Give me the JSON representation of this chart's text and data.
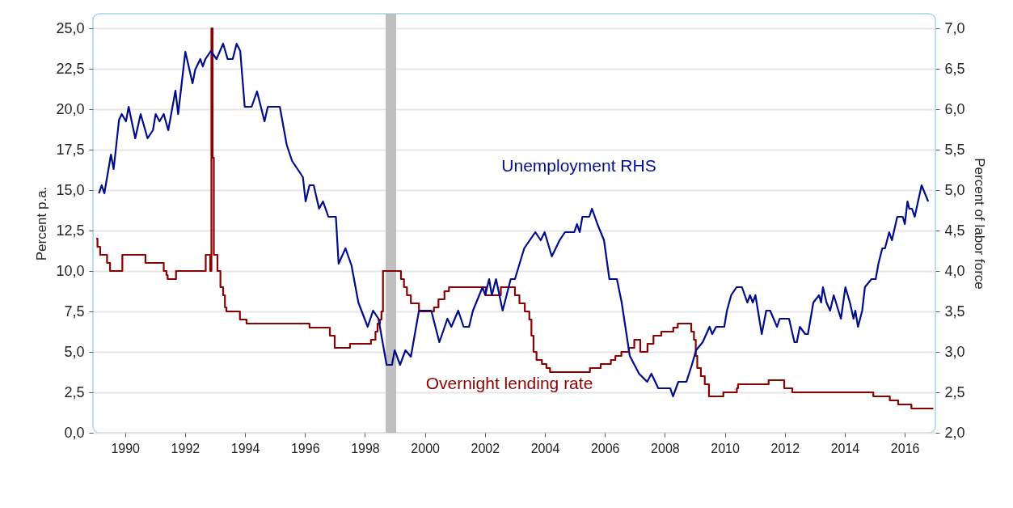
{
  "chart_data": {
    "type": "line",
    "ylabel": "Percent p.a.",
    "y2label": "Percent of labor force",
    "xlim": [
      1988.93,
      2017.02
    ],
    "xticks": [
      1990,
      1992,
      1994,
      1996,
      1998,
      2000,
      2002,
      2004,
      2006,
      2008,
      2010,
      2012,
      2014,
      2016
    ],
    "ylim": [
      0,
      25.9
    ],
    "yticks": [
      {
        "value": 0,
        "label": "0,0"
      },
      {
        "value": 2.5,
        "label": "2,5"
      },
      {
        "value": 5,
        "label": "5,0"
      },
      {
        "value": 7.5,
        "label": "7,5"
      },
      {
        "value": 10,
        "label": "10,0"
      },
      {
        "value": 12.5,
        "label": "12,5"
      },
      {
        "value": 15,
        "label": "15,0"
      },
      {
        "value": 17.5,
        "label": "17,5"
      },
      {
        "value": 20,
        "label": "20,0"
      },
      {
        "value": 22.5,
        "label": "22,5"
      },
      {
        "value": 25,
        "label": "25,0"
      }
    ],
    "y2lim": [
      2,
      7.18
    ],
    "y2ticks": [
      {
        "value": 2,
        "label": "2,0"
      },
      {
        "value": 2.5,
        "label": "2,5"
      },
      {
        "value": 3,
        "label": "3,0"
      },
      {
        "value": 3.5,
        "label": "3,5"
      },
      {
        "value": 4,
        "label": "4,0"
      },
      {
        "value": 4.5,
        "label": "4,5"
      },
      {
        "value": 5,
        "label": "5,0"
      },
      {
        "value": 5.5,
        "label": "5,5"
      },
      {
        "value": 6,
        "label": "6,0"
      },
      {
        "value": 6.5,
        "label": "6,5"
      },
      {
        "value": 7,
        "label": "7,0"
      }
    ],
    "grid": "y",
    "bands": [
      {
        "axis": "x",
        "from": 1998.69,
        "to": 1999.04,
        "color": "#bfbfbf"
      }
    ],
    "series": [
      {
        "name": "Overnight lending rate",
        "type": "step",
        "color": "#8b0000",
        "x": [
          1989.04,
          1989.08,
          1989.17,
          1989.4,
          1989.5,
          1989.91,
          1990.68,
          1991.29,
          1991.38,
          1991.42,
          1991.7,
          1992.69,
          1992.84,
          1992.88,
          1992.92,
          1992.96,
          1993.08,
          1993.18,
          1993.27,
          1993.33,
          1993.38,
          1993.83,
          1994.05,
          1996.15,
          1996.83,
          1996.99,
          1997.5,
          1998.2,
          1998.35,
          1998.42,
          1998.5,
          1998.55,
          1998.6,
          1999.2,
          1999.3,
          1999.4,
          1999.53,
          1999.8,
          2000.3,
          2000.45,
          2000.65,
          2000.8,
          2002.03,
          2002.53,
          2003.0,
          2003.15,
          2003.33,
          2003.48,
          2003.55,
          2003.62,
          2003.72,
          2003.9,
          2004.05,
          2004.17,
          2005.5,
          2005.86,
          2006.2,
          2006.35,
          2006.55,
          2006.8,
          2006.98,
          2007.18,
          2007.42,
          2007.62,
          2007.88,
          2008.28,
          2008.43,
          2008.88,
          2008.97,
          2009.03,
          2009.08,
          2009.2,
          2009.33,
          2009.47,
          2009.95,
          2010.4,
          2010.44,
          2011.46,
          2011.98,
          2012.25,
          2014.95,
          2015.5,
          2015.78,
          2016.22,
          2016.95
        ],
        "values": [
          12.0,
          11.5,
          11.0,
          10.5,
          10.0,
          11.0,
          10.5,
          10.0,
          9.75,
          9.5,
          10.0,
          11.0,
          10.0,
          25.0,
          17.0,
          11.0,
          10.0,
          9.0,
          8.5,
          7.75,
          7.5,
          7.0,
          6.75,
          6.5,
          6.0,
          5.25,
          5.5,
          5.75,
          6.25,
          6.75,
          7.0,
          7.5,
          10.0,
          9.5,
          9.0,
          8.5,
          8.0,
          7.5,
          7.75,
          8.25,
          8.75,
          9.0,
          8.5,
          9.0,
          8.5,
          8.0,
          7.5,
          7.0,
          6.0,
          5.0,
          4.5,
          4.25,
          4.0,
          3.75,
          4.0,
          4.25,
          4.5,
          4.75,
          5.0,
          5.25,
          5.75,
          5.0,
          5.5,
          6.0,
          6.25,
          6.5,
          6.75,
          6.25,
          5.75,
          4.75,
          4.0,
          3.5,
          3.0,
          2.25,
          2.5,
          2.75,
          3.0,
          3.25,
          2.75,
          2.5,
          2.25,
          2.0,
          1.75,
          1.5,
          1.5
        ]
      },
      {
        "name": "Unemployment RHS",
        "type": "line",
        "axis": "y2",
        "color": "#000c8c",
        "x": [
          1989.13,
          1989.22,
          1989.31,
          1989.53,
          1989.62,
          1989.8,
          1989.89,
          1990.03,
          1990.12,
          1990.34,
          1990.52,
          1990.75,
          1990.93,
          1991.02,
          1991.15,
          1991.29,
          1991.44,
          1991.68,
          1991.77,
          1992.01,
          1992.25,
          1992.34,
          1992.51,
          1992.59,
          1992.68,
          1992.86,
          1993.05,
          1993.27,
          1993.42,
          1993.59,
          1993.72,
          1993.84,
          1993.99,
          1994.22,
          1994.4,
          1994.65,
          1994.76,
          1995.16,
          1995.39,
          1995.57,
          1995.75,
          1995.93,
          1996.02,
          1996.15,
          1996.29,
          1996.47,
          1996.6,
          1996.78,
          1997.03,
          1997.12,
          1997.35,
          1997.55,
          1997.78,
          1998.09,
          1998.27,
          1998.45,
          1998.72,
          1998.9,
          1998.99,
          1999.17,
          1999.35,
          1999.53,
          1999.8,
          2000.21,
          2000.48,
          2000.75,
          2000.88,
          2001.11,
          2001.29,
          2001.47,
          2001.6,
          2001.92,
          2002.01,
          2002.14,
          2002.23,
          2002.37,
          2002.59,
          2002.86,
          2003.0,
          2003.31,
          2003.68,
          2003.86,
          2003.99,
          2004.23,
          2004.49,
          2004.67,
          2004.98,
          2005.07,
          2005.16,
          2005.25,
          2005.48,
          2005.57,
          2005.75,
          2005.97,
          2006.15,
          2006.4,
          2006.56,
          2006.83,
          2007.14,
          2007.41,
          2007.55,
          2007.78,
          2008.18,
          2008.27,
          2008.45,
          2008.72,
          2008.9,
          2009.04,
          2009.26,
          2009.49,
          2009.58,
          2009.71,
          2009.98,
          2010.07,
          2010.21,
          2010.39,
          2010.57,
          2010.75,
          2010.84,
          2010.93,
          2011.02,
          2011.23,
          2011.38,
          2011.51,
          2011.74,
          2011.83,
          2012.14,
          2012.32,
          2012.4,
          2012.5,
          2012.68,
          2012.77,
          2012.95,
          2013.14,
          2013.21,
          2013.27,
          2013.39,
          2013.51,
          2013.63,
          2013.87,
          2014.02,
          2014.17,
          2014.29,
          2014.35,
          2014.44,
          2014.58,
          2014.67,
          2014.89,
          2015.03,
          2015.12,
          2015.25,
          2015.34,
          2015.48,
          2015.57,
          2015.75,
          2015.93,
          2016.0,
          2016.09,
          2016.15,
          2016.24,
          2016.33,
          2016.56,
          2016.78
        ],
        "values": [
          4.96,
          5.06,
          4.96,
          5.44,
          5.26,
          5.87,
          5.94,
          5.85,
          6.03,
          5.64,
          5.94,
          5.64,
          5.74,
          5.94,
          5.85,
          5.94,
          5.74,
          6.23,
          5.94,
          6.71,
          6.32,
          6.49,
          6.62,
          6.53,
          6.62,
          6.72,
          6.62,
          6.81,
          6.62,
          6.62,
          6.81,
          6.72,
          6.03,
          6.03,
          6.22,
          5.85,
          6.03,
          6.03,
          5.56,
          5.36,
          5.26,
          5.16,
          4.86,
          5.06,
          5.06,
          4.77,
          4.86,
          4.67,
          4.67,
          4.09,
          4.28,
          4.07,
          3.61,
          3.31,
          3.51,
          3.41,
          2.84,
          2.84,
          3.02,
          2.84,
          3.02,
          2.94,
          3.51,
          3.51,
          3.12,
          3.41,
          3.31,
          3.51,
          3.31,
          3.31,
          3.51,
          3.8,
          3.7,
          3.9,
          3.7,
          3.9,
          3.51,
          3.9,
          3.9,
          4.28,
          4.48,
          4.38,
          4.48,
          4.18,
          4.38,
          4.48,
          4.48,
          4.58,
          4.48,
          4.67,
          4.67,
          4.77,
          4.58,
          4.38,
          3.9,
          3.9,
          3.61,
          2.95,
          2.73,
          2.63,
          2.73,
          2.55,
          2.55,
          2.45,
          2.63,
          2.63,
          2.84,
          3.02,
          3.12,
          3.31,
          3.22,
          3.31,
          3.31,
          3.51,
          3.7,
          3.8,
          3.8,
          3.61,
          3.7,
          3.61,
          3.7,
          3.22,
          3.51,
          3.51,
          3.31,
          3.41,
          3.41,
          3.12,
          3.12,
          3.31,
          3.22,
          3.22,
          3.61,
          3.7,
          3.61,
          3.8,
          3.61,
          3.51,
          3.7,
          3.41,
          3.8,
          3.61,
          3.41,
          3.51,
          3.31,
          3.51,
          3.8,
          3.9,
          3.9,
          4.09,
          4.28,
          4.28,
          4.48,
          4.38,
          4.67,
          4.67,
          4.58,
          4.86,
          4.77,
          4.77,
          4.67,
          5.06,
          4.86
        ]
      }
    ]
  }
}
